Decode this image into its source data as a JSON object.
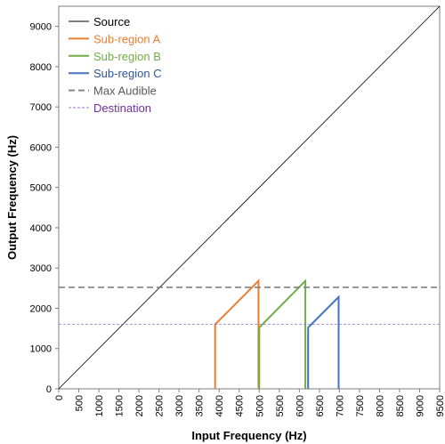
{
  "chart_data": {
    "type": "line",
    "xlabel": "Input Frequency (Hz)",
    "ylabel": "Output Frequency (Hz)",
    "xlim": [
      0,
      9500
    ],
    "ylim": [
      0,
      9500
    ],
    "xticks": [
      0,
      500,
      1000,
      1500,
      2000,
      2500,
      3000,
      3500,
      4000,
      4500,
      5000,
      5500,
      6000,
      6500,
      7000,
      7500,
      8000,
      8500,
      9000,
      9500
    ],
    "yticks": [
      0,
      1000,
      2000,
      3000,
      4000,
      5000,
      6000,
      7000,
      8000,
      9000
    ],
    "grid": false,
    "legend_position": "top-left",
    "series": [
      {
        "name": "Source",
        "color": "#000000",
        "style": "solid",
        "x": [
          0,
          9500
        ],
        "y": [
          0,
          9500
        ]
      },
      {
        "name": "Sub-region A",
        "color": "#ED7D31",
        "style": "solid",
        "x": [
          3900,
          3900,
          4980,
          4980
        ],
        "y": [
          0,
          1600,
          2680,
          0
        ]
      },
      {
        "name": "Sub-region B",
        "color": "#70AD47",
        "style": "solid",
        "x": [
          5000,
          5000,
          6150,
          6150
        ],
        "y": [
          0,
          1520,
          2680,
          0
        ]
      },
      {
        "name": "Sub-region C",
        "color": "#4472C4",
        "style": "solid",
        "x": [
          6220,
          6220,
          6980,
          6980
        ],
        "y": [
          0,
          1520,
          2280,
          0
        ]
      },
      {
        "name": "Max Audible",
        "color": "#808080",
        "style": "dashed",
        "x": [
          0,
          9500
        ],
        "y": [
          2520,
          2520
        ]
      },
      {
        "name": "Destination",
        "color": "#9B72D0",
        "style": "dashed-thin",
        "x": [
          0,
          9500
        ],
        "y": [
          1600,
          1600
        ]
      }
    ]
  }
}
